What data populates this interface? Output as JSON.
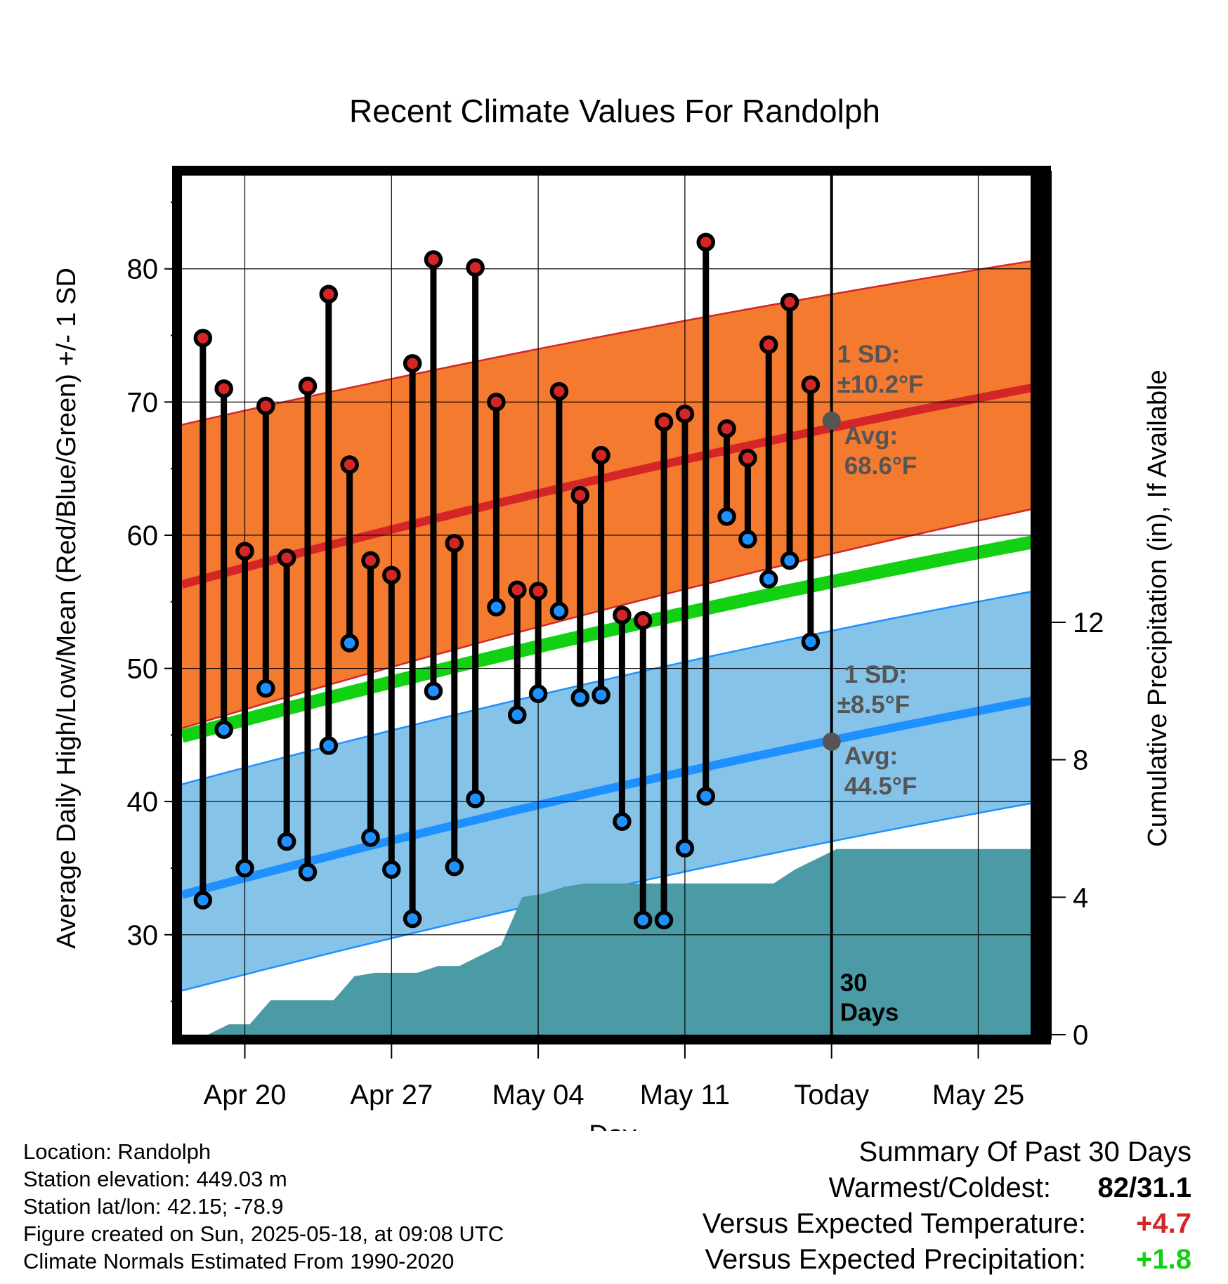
{
  "chart_data": {
    "type": "line",
    "title": "Recent Climate Values For Randolph",
    "xlabel": "Day",
    "ylabel": "Average Daily High/Low/Mean (Red/Blue/Green) +/- 1 SD",
    "y2label": "Cumulative Precipitation (in), If Available",
    "ylim": [
      22.5,
      87
    ],
    "y2lim": [
      0,
      25
    ],
    "y_ticks": [
      30,
      40,
      50,
      60,
      70,
      80
    ],
    "y2_ticks": [
      0,
      4,
      8,
      12
    ],
    "x_ticks": [
      {
        "label": "Apr 20",
        "day": "2025-04-20"
      },
      {
        "label": "Apr 27",
        "day": "2025-04-27"
      },
      {
        "label": "May 04",
        "day": "2025-05-04"
      },
      {
        "label": "May 11",
        "day": "2025-05-11"
      },
      {
        "label": "Today",
        "day": "2025-05-18"
      },
      {
        "label": "May 25",
        "day": "2025-05-25"
      }
    ],
    "xlim": [
      "2025-04-17",
      "2025-05-28"
    ],
    "today": "2025-05-18",
    "grid": true,
    "colors": {
      "high_band": "#f47a30",
      "high_line": "#d42626",
      "low_band": "#86c3e8",
      "low_line": "#1e90ff",
      "mean_line": "#12d012",
      "precip": "#4a9ba5",
      "high_dot": "#d42626",
      "low_dot": "#1e90ff",
      "annotation": "#555555"
    },
    "normals": {
      "dates": [
        "2025-04-17",
        "2025-05-28"
      ],
      "high_mean": [
        56.3,
        71.2
      ],
      "high_upper": [
        68.3,
        80.7
      ],
      "high_lower": [
        45.5,
        62.1
      ],
      "low_mean": [
        33.0,
        47.7
      ],
      "low_upper": [
        41.3,
        55.9
      ],
      "low_lower": [
        25.8,
        40.0
      ],
      "mean": [
        44.9,
        59.6
      ]
    },
    "series": [
      {
        "name": "High",
        "dates": [
          "2025-04-18",
          "2025-04-19",
          "2025-04-20",
          "2025-04-21",
          "2025-04-22",
          "2025-04-23",
          "2025-04-24",
          "2025-04-25",
          "2025-04-26",
          "2025-04-27",
          "2025-04-28",
          "2025-04-29",
          "2025-04-30",
          "2025-05-01",
          "2025-05-02",
          "2025-05-03",
          "2025-05-04",
          "2025-05-05",
          "2025-05-06",
          "2025-05-07",
          "2025-05-08",
          "2025-05-09",
          "2025-05-10",
          "2025-05-11",
          "2025-05-12",
          "2025-05-13",
          "2025-05-14",
          "2025-05-15",
          "2025-05-16",
          "2025-05-17"
        ],
        "values": [
          74.8,
          71.0,
          58.8,
          69.7,
          58.3,
          71.2,
          78.1,
          65.3,
          58.1,
          57.0,
          72.9,
          80.7,
          59.4,
          80.1,
          70.0,
          55.9,
          55.8,
          70.8,
          63.0,
          66.0,
          54.0,
          53.6,
          68.5,
          69.1,
          82.0,
          68.0,
          65.8,
          74.3,
          77.5,
          71.3
        ]
      },
      {
        "name": "Low",
        "dates": [
          "2025-04-18",
          "2025-04-19",
          "2025-04-20",
          "2025-04-21",
          "2025-04-22",
          "2025-04-23",
          "2025-04-24",
          "2025-04-25",
          "2025-04-26",
          "2025-04-27",
          "2025-04-28",
          "2025-04-29",
          "2025-04-30",
          "2025-05-01",
          "2025-05-02",
          "2025-05-03",
          "2025-05-04",
          "2025-05-05",
          "2025-05-06",
          "2025-05-07",
          "2025-05-08",
          "2025-05-09",
          "2025-05-10",
          "2025-05-11",
          "2025-05-12",
          "2025-05-13",
          "2025-05-14",
          "2025-05-15",
          "2025-05-16",
          "2025-05-17"
        ],
        "values": [
          32.6,
          45.4,
          35.0,
          48.5,
          37.0,
          34.7,
          44.2,
          51.9,
          37.3,
          34.9,
          31.2,
          48.3,
          35.1,
          40.2,
          54.6,
          46.5,
          48.1,
          54.3,
          47.8,
          48.0,
          38.5,
          31.1,
          31.1,
          36.5,
          40.4,
          61.4,
          59.7,
          56.7,
          58.1,
          52.0
        ]
      },
      {
        "name": "Cumulative Precipitation",
        "dates": [
          "2025-04-17",
          "2025-04-18",
          "2025-04-19",
          "2025-04-20",
          "2025-04-21",
          "2025-04-22",
          "2025-04-23",
          "2025-04-24",
          "2025-04-25",
          "2025-04-26",
          "2025-04-27",
          "2025-04-28",
          "2025-04-29",
          "2025-04-30",
          "2025-05-01",
          "2025-05-02",
          "2025-05-03",
          "2025-05-04",
          "2025-05-05",
          "2025-05-06",
          "2025-05-07",
          "2025-05-08",
          "2025-05-09",
          "2025-05-10",
          "2025-05-11",
          "2025-05-12",
          "2025-05-13",
          "2025-05-14",
          "2025-05-15",
          "2025-05-16",
          "2025-05-17",
          "2025-05-18",
          "2025-05-28"
        ],
        "values": [
          0,
          0,
          0.3,
          0.3,
          1.0,
          1.0,
          1.0,
          1.0,
          1.7,
          1.8,
          1.8,
          1.8,
          2.0,
          2.0,
          2.3,
          2.6,
          4.0,
          4.1,
          4.3,
          4.4,
          4.4,
          4.4,
          4.4,
          4.4,
          4.4,
          4.4,
          4.4,
          4.4,
          4.4,
          4.8,
          5.1,
          5.4,
          5.4
        ]
      }
    ],
    "annotations": {
      "high_sd_label": "1 SD:",
      "high_sd_value": "±10.2°F",
      "high_avg_label": "Avg:",
      "high_avg_value": "68.6°F",
      "high_avg": 68.6,
      "low_sd_label": "1 SD:",
      "low_sd_value": "±8.5°F",
      "low_avg_label": "Avg:",
      "low_avg_value": "44.5°F",
      "low_avg": 44.5,
      "days_number": "30",
      "days_label": "Days"
    }
  },
  "footer": {
    "location": "Location: Randolph",
    "elevation": "Station elevation: 449.03 m",
    "latlon": "Station lat/lon: 42.15; -78.9",
    "created": "Figure created on Sun, 2025-05-18, at 09:08 UTC",
    "normals": "Climate Normals Estimated From 1990-2020"
  },
  "summary": {
    "title": "Summary Of Past 30 Days",
    "warmest_coldest_label": "Warmest/Coldest:",
    "warmest_coldest_value": "82/31.1",
    "temp_label": "Versus Expected Temperature:",
    "temp_value": "+4.7",
    "temp_color": "#d42626",
    "precip_label": "Versus Expected Precipitation:",
    "precip_value": "+1.8",
    "precip_color": "#12d012"
  }
}
